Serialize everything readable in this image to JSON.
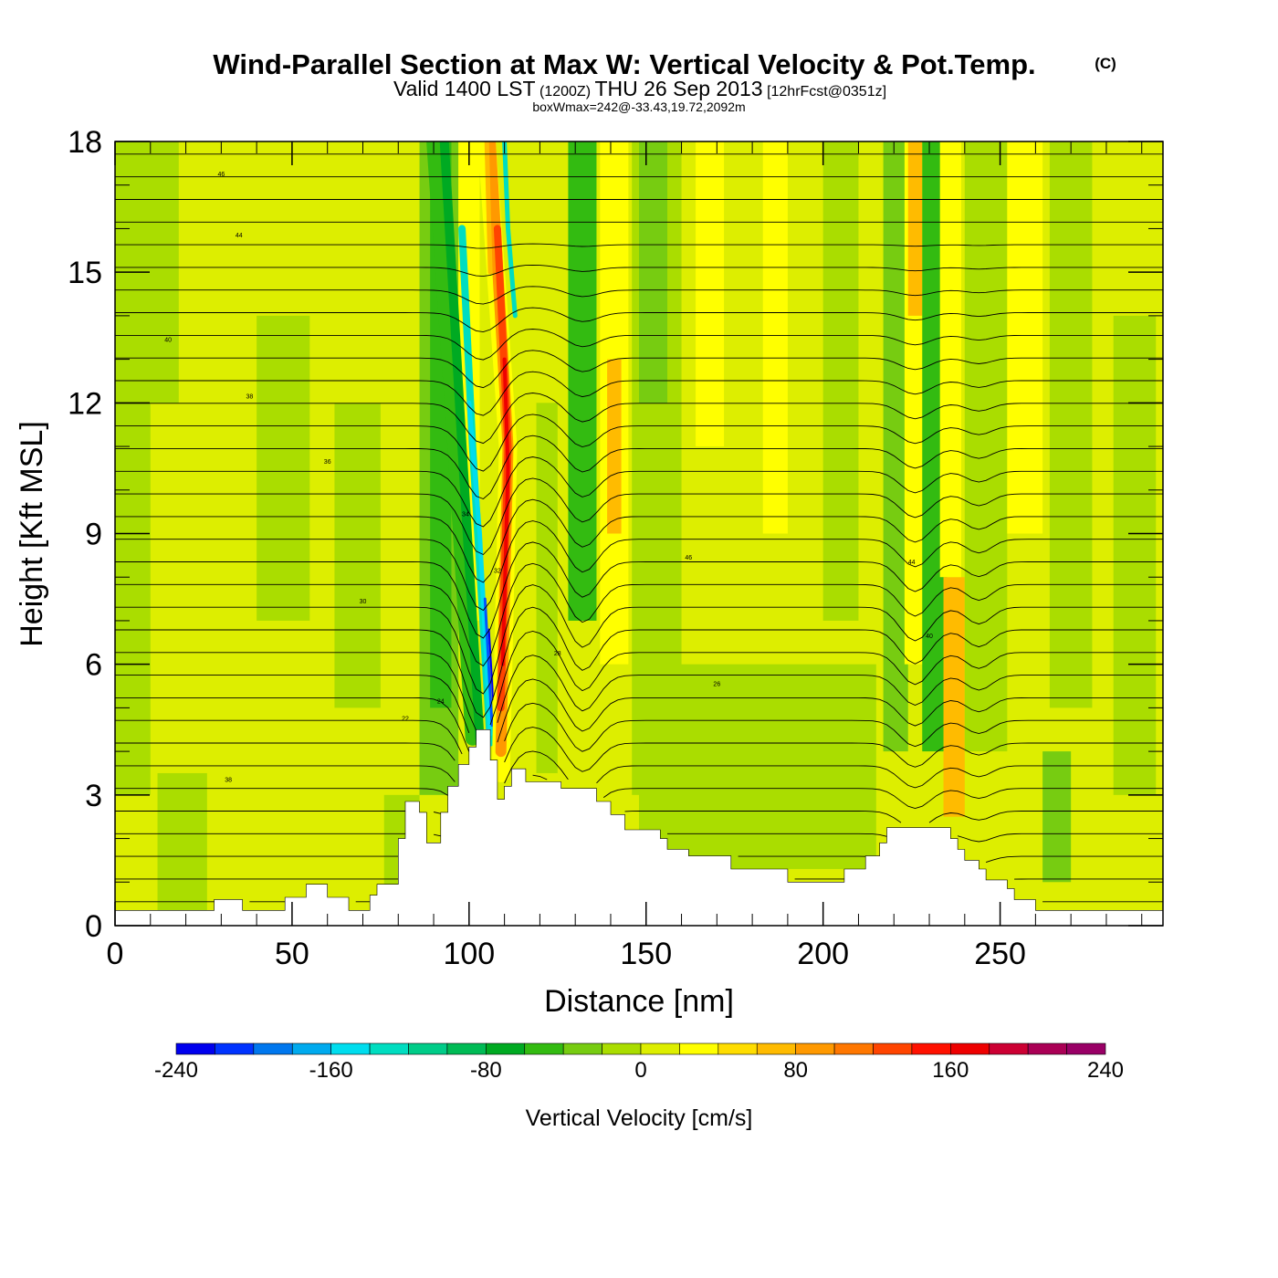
{
  "title": {
    "main": "Wind-Parallel Section at Max W: Vertical Velocity & Pot.Temp.",
    "copyright": "(C)",
    "valid_prefix": "Valid 1400 LST",
    "utc": "(1200Z)",
    "valid_date": "THU 26 Sep 2013",
    "forecast": "[12hrFcst@0351z]",
    "box": "boxWmax=242@-33.43,19.72,2092m"
  },
  "chart_data": {
    "type": "heatmap",
    "xlabel": "Distance [nm]",
    "ylabel": "Height [Kft MSL]",
    "xlim": [
      0,
      296
    ],
    "ylim": [
      0,
      18
    ],
    "x_ticks": [
      0,
      50,
      100,
      150,
      200,
      250
    ],
    "y_ticks": [
      0,
      3,
      6,
      9,
      12,
      15,
      18
    ],
    "terrain": [
      [
        0,
        0.35
      ],
      [
        28,
        0.35
      ],
      [
        28,
        0.6
      ],
      [
        36,
        0.6
      ],
      [
        36,
        0.35
      ],
      [
        48,
        0.35
      ],
      [
        48,
        0.65
      ],
      [
        54,
        0.65
      ],
      [
        54,
        0.95
      ],
      [
        60,
        0.95
      ],
      [
        60,
        0.65
      ],
      [
        66,
        0.65
      ],
      [
        66,
        0.35
      ],
      [
        72,
        0.35
      ],
      [
        72,
        0.7
      ],
      [
        74,
        0.7
      ],
      [
        74,
        0.95
      ],
      [
        80,
        0.95
      ],
      [
        80,
        2.0
      ],
      [
        82,
        2.0
      ],
      [
        82,
        2.85
      ],
      [
        86,
        2.85
      ],
      [
        86,
        2.6
      ],
      [
        88,
        2.6
      ],
      [
        88,
        1.9
      ],
      [
        92,
        1.9
      ],
      [
        92,
        2.6
      ],
      [
        94,
        2.6
      ],
      [
        94,
        3.2
      ],
      [
        97,
        3.2
      ],
      [
        97,
        3.7
      ],
      [
        100,
        3.7
      ],
      [
        100,
        4.1
      ],
      [
        102,
        4.1
      ],
      [
        102,
        4.5
      ],
      [
        106,
        4.5
      ],
      [
        106,
        3.8
      ],
      [
        108,
        3.8
      ],
      [
        108,
        2.9
      ],
      [
        110,
        2.9
      ],
      [
        110,
        3.2
      ],
      [
        112,
        3.2
      ],
      [
        112,
        3.6
      ],
      [
        116,
        3.6
      ],
      [
        116,
        3.3
      ],
      [
        126,
        3.3
      ],
      [
        126,
        3.15
      ],
      [
        136,
        3.15
      ],
      [
        136,
        2.85
      ],
      [
        140,
        2.85
      ],
      [
        140,
        2.55
      ],
      [
        144,
        2.55
      ],
      [
        144,
        2.2
      ],
      [
        154,
        2.2
      ],
      [
        154,
        2.0
      ],
      [
        156,
        2.0
      ],
      [
        156,
        1.75
      ],
      [
        162,
        1.75
      ],
      [
        162,
        1.6
      ],
      [
        174,
        1.6
      ],
      [
        174,
        1.3
      ],
      [
        190,
        1.3
      ],
      [
        190,
        1.0
      ],
      [
        206,
        1.0
      ],
      [
        206,
        1.3
      ],
      [
        212,
        1.3
      ],
      [
        212,
        1.6
      ],
      [
        216,
        1.6
      ],
      [
        216,
        1.9
      ],
      [
        218,
        1.9
      ],
      [
        218,
        2.25
      ],
      [
        236,
        2.25
      ],
      [
        236,
        2.0
      ],
      [
        238,
        2.0
      ],
      [
        238,
        1.75
      ],
      [
        240,
        1.75
      ],
      [
        240,
        1.5
      ],
      [
        244,
        1.5
      ],
      [
        244,
        1.3
      ],
      [
        246,
        1.3
      ],
      [
        246,
        1.05
      ],
      [
        252,
        1.05
      ],
      [
        252,
        0.85
      ],
      [
        254,
        0.85
      ],
      [
        254,
        0.6
      ],
      [
        260,
        0.6
      ],
      [
        260,
        0.35
      ],
      [
        296,
        0.35
      ]
    ],
    "w_max": 242,
    "theta_labels": [
      "46",
      "44",
      "40",
      "38",
      "36",
      "34",
      "32",
      "30",
      "28",
      "26",
      "24",
      "22"
    ],
    "colorbar": {
      "label": "Vertical Velocity [cm/s]",
      "range": [
        -240,
        240
      ],
      "ticks": [
        "-240",
        "-160",
        "-80",
        "0",
        "80",
        "160",
        "240"
      ],
      "colors": [
        "#0000ee",
        "#0033ff",
        "#0077ee",
        "#00aaee",
        "#00ddee",
        "#00ddc0",
        "#00cc88",
        "#00bb55",
        "#00aa22",
        "#33bb11",
        "#77cc11",
        "#aadd00",
        "#ddee00",
        "#ffff00",
        "#ffdd00",
        "#ffbb00",
        "#ff9900",
        "#ff7700",
        "#ff4400",
        "#ff1100",
        "#ee0000",
        "#cc0033",
        "#aa0055",
        "#990066"
      ]
    }
  }
}
